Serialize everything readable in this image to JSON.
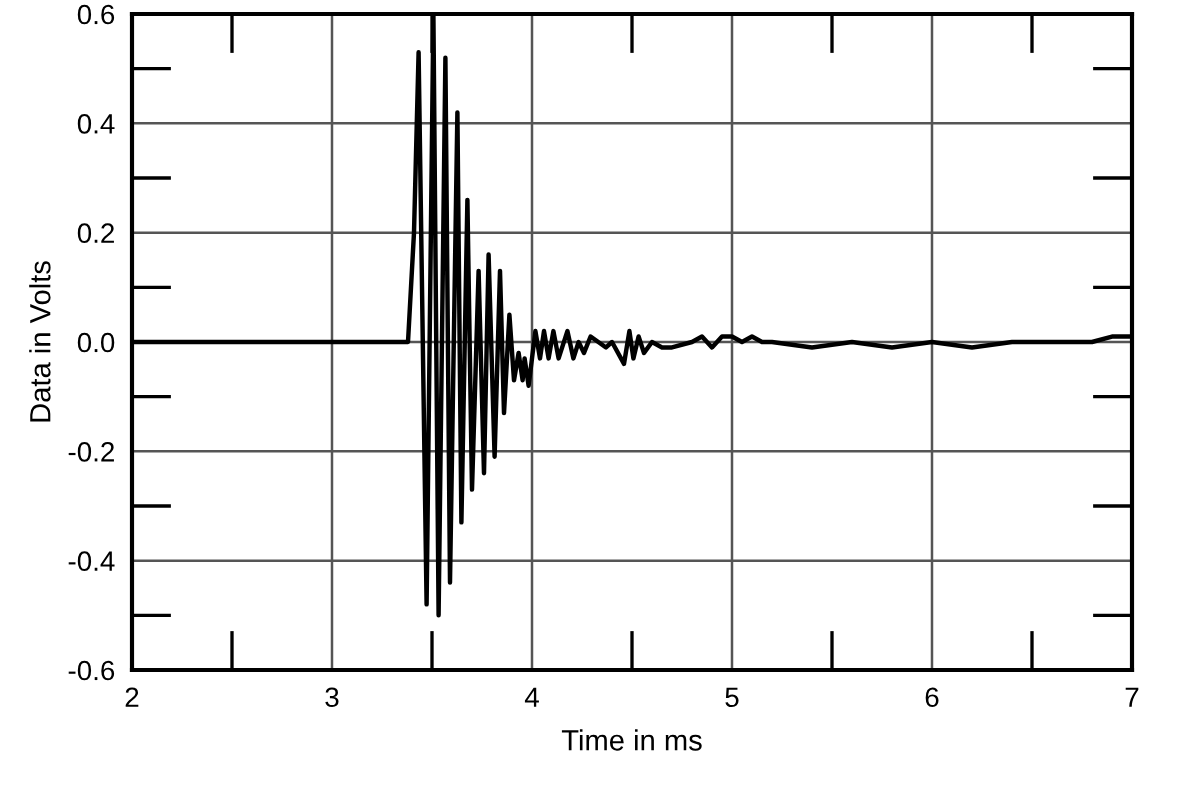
{
  "chart_data": {
    "type": "line",
    "xlabel": "Time in ms",
    "ylabel": "Data in Volts",
    "xlim": [
      2,
      7
    ],
    "ylim": [
      -0.6,
      0.6
    ],
    "xticks": [
      2,
      3,
      4,
      5,
      6,
      7
    ],
    "yticks": [
      {
        "value": -0.6,
        "label": "-0.6"
      },
      {
        "value": -0.4,
        "label": "-0.4"
      },
      {
        "value": -0.2,
        "label": "-0.2"
      },
      {
        "value": 0,
        "label": "0.0"
      },
      {
        "value": 0.2,
        "label": "0.2"
      },
      {
        "value": 0.4,
        "label": "0.4"
      },
      {
        "value": 0.6,
        "label": "0.6"
      }
    ],
    "grid": true,
    "marker": "none",
    "line_style": "solid",
    "series": [
      {
        "color": "#000000",
        "x": [
          2.0,
          3.0,
          3.38,
          3.41,
          3.433,
          3.473,
          3.507,
          3.533,
          3.567,
          3.59,
          3.627,
          3.647,
          3.677,
          3.7,
          3.733,
          3.76,
          3.783,
          3.813,
          3.84,
          3.86,
          3.887,
          3.91,
          3.933,
          3.953,
          3.963,
          3.983,
          4.017,
          4.04,
          4.06,
          4.083,
          4.107,
          4.133,
          4.177,
          4.207,
          4.233,
          4.26,
          4.293,
          4.37,
          4.4,
          4.46,
          4.487,
          4.507,
          4.533,
          4.56,
          4.6,
          4.65,
          4.7,
          4.8,
          4.85,
          4.9,
          4.95,
          5.0,
          5.05,
          5.1,
          5.15,
          5.2,
          5.4,
          5.6,
          5.8,
          6.0,
          6.2,
          6.4,
          6.6,
          6.8,
          6.9,
          7.0
        ],
        "values": [
          0.0,
          0.0,
          0.0,
          0.2,
          0.53,
          -0.48,
          0.6,
          -0.5,
          0.52,
          -0.44,
          0.42,
          -0.33,
          0.26,
          -0.27,
          0.13,
          -0.24,
          0.16,
          -0.21,
          0.13,
          -0.13,
          0.05,
          -0.07,
          -0.02,
          -0.07,
          -0.03,
          -0.08,
          0.02,
          -0.03,
          0.02,
          -0.03,
          0.02,
          -0.03,
          0.02,
          -0.03,
          0.0,
          -0.02,
          0.01,
          -0.01,
          0.0,
          -0.04,
          0.02,
          -0.03,
          0.01,
          -0.02,
          0.0,
          -0.01,
          -0.01,
          0.0,
          0.01,
          -0.01,
          0.01,
          0.01,
          0.0,
          0.01,
          0.0,
          0.0,
          -0.01,
          0.0,
          -0.01,
          0.0,
          -0.01,
          0.0,
          0.0,
          0.0,
          0.01,
          0.01
        ]
      }
    ]
  }
}
